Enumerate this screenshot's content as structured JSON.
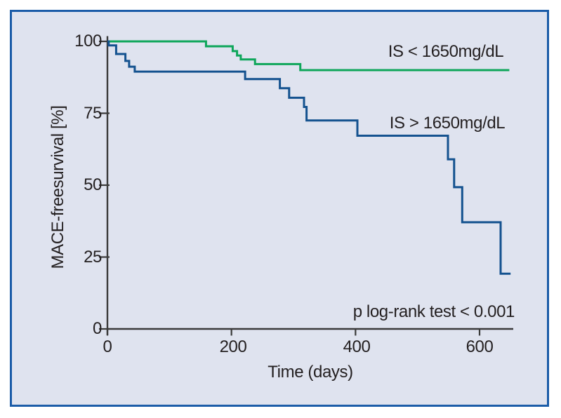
{
  "figure": {
    "background_color": "#dfe3ef",
    "border_color": "#1b5ca8",
    "axis_color": "#3a3a3a"
  },
  "chart_data": {
    "type": "line",
    "subtype": "kaplan-meier-step",
    "title": "",
    "xlabel": "Time (days)",
    "ylabel": "MACE-freesurvival [%]",
    "xlim": [
      0,
      650
    ],
    "ylim": [
      0,
      100
    ],
    "grid": false,
    "x_ticks": [
      0,
      200,
      400,
      600
    ],
    "x_tick_labels": [
      "0",
      "200",
      "400",
      "600"
    ],
    "y_ticks": [
      100,
      75,
      50,
      25,
      0
    ],
    "y_tick_labels": [
      "100",
      "75",
      "50",
      "25",
      "0"
    ],
    "annotation": "p log-rank test < 0.001",
    "legend_position": "inline-right",
    "series": [
      {
        "name": "IS < 1650mg/dL",
        "color": "#0ea65a",
        "end_day": 648,
        "points": [
          [
            0,
            100
          ],
          [
            159,
            98.3
          ],
          [
            202,
            96.6
          ],
          [
            209,
            95.1
          ],
          [
            215,
            93.7
          ],
          [
            238,
            92.1
          ],
          [
            311,
            90.0
          ]
        ]
      },
      {
        "name": "IS > 1650mg/dL",
        "color": "#14528f",
        "end_day": 650,
        "points": [
          [
            0,
            100
          ],
          [
            2,
            98.6
          ],
          [
            14,
            95.6
          ],
          [
            29,
            93.2
          ],
          [
            35,
            91.2
          ],
          [
            44,
            89.5
          ],
          [
            222,
            86.9
          ],
          [
            278,
            83.7
          ],
          [
            293,
            80.4
          ],
          [
            317,
            77.2
          ],
          [
            321,
            72.5
          ],
          [
            403,
            67.2
          ],
          [
            549,
            59.0
          ],
          [
            559,
            49.3
          ],
          [
            572,
            37.1
          ],
          [
            634,
            19.2
          ]
        ]
      }
    ]
  }
}
